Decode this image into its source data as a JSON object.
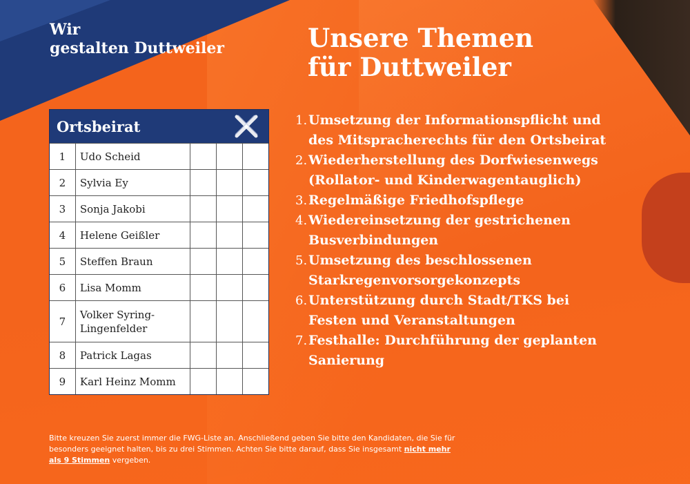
{
  "brand": {
    "line1": "Wir",
    "line2": "gestalten Duttweiler"
  },
  "headline": {
    "line1": "Unsere Themen",
    "line2": "für Duttweiler"
  },
  "ballot": {
    "title": "Ortsbeirat",
    "candidates": [
      {
        "num": "1",
        "name": "Udo Scheid"
      },
      {
        "num": "2",
        "name": "Sylvia Ey"
      },
      {
        "num": "3",
        "name": "Sonja Jakobi"
      },
      {
        "num": "4",
        "name": "Helene Geißler"
      },
      {
        "num": "5",
        "name": "Steffen Braun"
      },
      {
        "num": "6",
        "name": "Lisa Momm"
      },
      {
        "num": "7",
        "name_line1": "Volker Syring-",
        "name_line2": "Lingenfelder"
      },
      {
        "num": "8",
        "name": "Patrick Lagas"
      },
      {
        "num": "9",
        "name": "Karl Heinz Momm"
      }
    ]
  },
  "themes": [
    {
      "num": "1.",
      "line1": "Umsetzung der Informationspflicht und",
      "line2": "des Mitspracherechts für den Ortsbeirat"
    },
    {
      "num": "2.",
      "line1": "Wiederherstellung des Dorfwiesenwegs",
      "line2": "(Rollator- und Kinderwagentauglich)"
    },
    {
      "num": "3.",
      "line1": "Regelmäßige Friedhofspflege"
    },
    {
      "num": "4.",
      "line1": "Wiedereinsetzung der gestrichenen",
      "line2": "Busverbindungen"
    },
    {
      "num": "5.",
      "line1": "Umsetzung des beschlossenen",
      "line2": "Starkregenvorsorgekonzepts"
    },
    {
      "num": "6.",
      "line1": "Unterstützung durch Stadt/TKS bei",
      "line2": "Festen und Veranstaltungen"
    },
    {
      "num": "7.",
      "line1": "Festhalle: Durchführung der geplanten",
      "line2": "Sanierung"
    }
  ],
  "footnote": {
    "text1": "Bitte kreuzen Sie zuerst immer die FWG-Liste an. Anschließend geben Sie bitte den Kandidaten, die Sie für besonders geeignet halten, bis zu drei Stimmen. Achten Sie bitte darauf, dass Sie insgesamt ",
    "emphasis": "nicht mehr als 9 Stimmen",
    "text2": " vergeben."
  },
  "colors": {
    "orange": "#f4641c",
    "navy": "#1f3a78",
    "white": "#ffffff"
  }
}
